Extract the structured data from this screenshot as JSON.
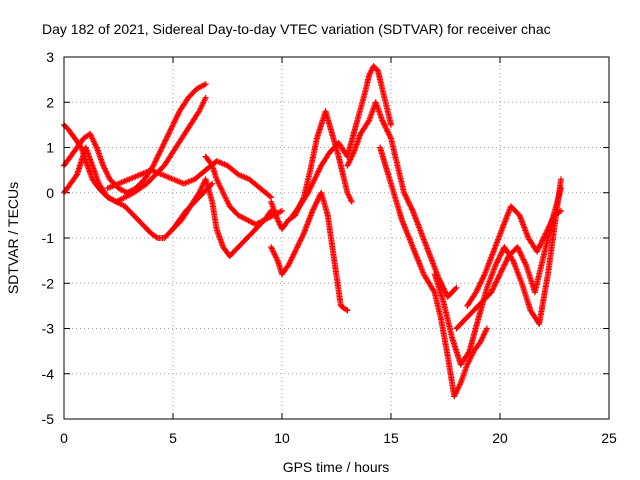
{
  "chart_data": {
    "type": "scatter",
    "title": "Day 182 of 2021, Sidereal Day-to-day VTEC variation (SDTVAR) for receiver chac",
    "xlabel": "GPS time / hours",
    "ylabel": "SDTVAR / TECUs",
    "xlim": [
      0,
      25
    ],
    "ylim": [
      -5,
      3
    ],
    "x_ticks": [
      "0",
      "5",
      "10",
      "15",
      "20",
      "25"
    ],
    "y_ticks": [
      "3",
      "2",
      "1",
      "0",
      "-1",
      "-2",
      "-3",
      "-4",
      "-5"
    ],
    "grid": true,
    "marker": "+",
    "marker_color": "#ff0000",
    "series": [
      {
        "x": [
          0.0,
          0.3,
          0.6,
          0.8,
          1.0,
          1.3,
          1.6,
          2.0,
          2.4,
          2.8,
          3.2,
          3.6,
          4.0,
          4.3,
          4.6,
          5.0,
          5.3,
          5.6,
          6.0,
          6.4,
          6.8
        ],
        "y": [
          0.0,
          0.2,
          0.4,
          0.7,
          1.0,
          0.6,
          0.2,
          -0.1,
          -0.2,
          -0.3,
          -0.5,
          -0.7,
          -0.9,
          -1.0,
          -1.0,
          -0.8,
          -0.6,
          -0.4,
          -0.2,
          0.0,
          0.2
        ]
      },
      {
        "x": [
          0.0,
          0.2,
          0.5,
          0.8,
          1.0,
          1.3,
          1.6,
          2.0,
          2.4,
          2.8,
          3.2,
          3.5,
          3.8,
          4.2,
          4.6,
          5.0,
          5.4,
          5.8,
          6.2,
          6.5
        ],
        "y": [
          1.5,
          1.4,
          1.2,
          1.0,
          0.7,
          0.3,
          0.1,
          -0.1,
          -0.2,
          -0.1,
          0.0,
          0.1,
          0.2,
          0.4,
          0.6,
          0.9,
          1.2,
          1.5,
          1.8,
          2.1
        ]
      },
      {
        "x": [
          0.0,
          0.3,
          0.6,
          0.9,
          1.2,
          1.5,
          1.8,
          2.1,
          2.5,
          2.9,
          3.3,
          3.7,
          4.1,
          4.5,
          4.9,
          5.3,
          5.7,
          6.1,
          6.5
        ],
        "y": [
          0.6,
          0.8,
          1.0,
          1.2,
          1.3,
          1.0,
          0.6,
          0.3,
          0.1,
          0.0,
          0.1,
          0.3,
          0.6,
          1.0,
          1.4,
          1.8,
          2.1,
          2.3,
          2.4
        ]
      },
      {
        "x": [
          2.0,
          2.5,
          3.0,
          3.5,
          4.0,
          4.5,
          5.0,
          5.5,
          6.0,
          6.5,
          7.0,
          7.5,
          8.0,
          8.5,
          9.0,
          9.5
        ],
        "y": [
          0.1,
          0.2,
          0.3,
          0.4,
          0.5,
          0.4,
          0.3,
          0.2,
          0.3,
          0.5,
          0.7,
          0.6,
          0.4,
          0.3,
          0.1,
          -0.1
        ]
      },
      {
        "x": [
          5.0,
          5.4,
          5.8,
          6.2,
          6.5,
          6.8,
          7.0,
          7.3,
          7.6,
          8.0,
          8.4,
          8.8,
          9.2,
          9.5
        ],
        "y": [
          -0.8,
          -0.6,
          -0.3,
          0.0,
          0.3,
          -0.2,
          -0.8,
          -1.2,
          -1.4,
          -1.2,
          -1.0,
          -0.8,
          -0.6,
          -0.4
        ]
      },
      {
        "x": [
          6.5,
          6.8,
          7.0,
          7.3,
          7.6,
          8.0,
          8.4,
          8.8,
          9.2,
          9.6,
          10.0
        ],
        "y": [
          0.8,
          0.6,
          0.3,
          0.0,
          -0.3,
          -0.5,
          -0.6,
          -0.7,
          -0.6,
          -0.5,
          -0.4
        ]
      },
      {
        "x": [
          9.5,
          9.8,
          10.0,
          10.3,
          10.6,
          11.0,
          11.3,
          11.6,
          12.0,
          12.3,
          12.6,
          12.8,
          13.0,
          13.2
        ],
        "y": [
          -0.2,
          -0.6,
          -0.8,
          -0.6,
          -0.5,
          -0.1,
          0.5,
          1.2,
          1.8,
          1.3,
          0.8,
          0.4,
          0.0,
          -0.2
        ]
      },
      {
        "x": [
          9.5,
          9.8,
          10.0,
          10.3,
          10.6,
          11.0,
          11.4,
          11.8,
          12.1,
          12.4,
          12.7,
          13.0
        ],
        "y": [
          -1.2,
          -1.5,
          -1.8,
          -1.6,
          -1.3,
          -0.9,
          -0.4,
          0.0,
          -0.5,
          -1.5,
          -2.5,
          -2.6
        ]
      },
      {
        "x": [
          10.5,
          10.8,
          11.2,
          11.5,
          11.8,
          12.2,
          12.6,
          13.0,
          13.4,
          13.8,
          14.0,
          14.2,
          14.4,
          14.6,
          14.8,
          15.0
        ],
        "y": [
          -0.5,
          -0.3,
          0.0,
          0.3,
          0.6,
          0.9,
          1.1,
          0.8,
          1.5,
          2.2,
          2.6,
          2.8,
          2.7,
          2.3,
          1.9,
          1.5
        ]
      },
      {
        "x": [
          13.0,
          13.3,
          13.6,
          14.0,
          14.3,
          14.6,
          15.0,
          15.3,
          15.6,
          16.0,
          16.4,
          16.8,
          17.2,
          17.6,
          18.0
        ],
        "y": [
          0.6,
          0.9,
          1.3,
          1.6,
          2.0,
          1.6,
          1.2,
          0.6,
          0.0,
          -0.4,
          -0.9,
          -1.4,
          -1.9,
          -2.3,
          -2.1
        ]
      },
      {
        "x": [
          14.5,
          15.0,
          15.5,
          16.0,
          16.5,
          17.0,
          17.3,
          17.6,
          17.9,
          18.2,
          18.5,
          18.8,
          19.1,
          19.4
        ],
        "y": [
          1.0,
          0.2,
          -0.6,
          -1.2,
          -1.8,
          -2.2,
          -2.8,
          -3.6,
          -4.5,
          -4.2,
          -3.8,
          -3.5,
          -3.3,
          -3.0
        ]
      },
      {
        "x": [
          17.0,
          17.4,
          17.8,
          18.2,
          18.6,
          19.0,
          19.4,
          19.8,
          20.2,
          20.6,
          21.0,
          21.4,
          21.8,
          22.2,
          22.6,
          22.8
        ],
        "y": [
          -1.8,
          -2.4,
          -3.2,
          -3.8,
          -3.5,
          -2.8,
          -2.1,
          -1.6,
          -1.2,
          -1.5,
          -2.0,
          -2.6,
          -2.9,
          -1.8,
          -0.4,
          0.3
        ]
      },
      {
        "x": [
          18.5,
          18.9,
          19.3,
          19.7,
          20.1,
          20.5,
          20.9,
          21.3,
          21.7,
          22.1,
          22.5,
          22.8
        ],
        "y": [
          -2.5,
          -2.2,
          -1.8,
          -1.3,
          -0.8,
          -0.3,
          -0.5,
          -1.0,
          -1.3,
          -0.9,
          -0.5,
          -0.4
        ]
      },
      {
        "x": [
          18.0,
          18.4,
          18.8,
          19.2,
          19.6,
          20.0,
          20.4,
          20.8,
          21.2,
          21.6,
          22.0,
          22.4,
          22.8
        ],
        "y": [
          -3.0,
          -2.8,
          -2.6,
          -2.4,
          -2.2,
          -1.8,
          -1.4,
          -1.2,
          -1.6,
          -2.2,
          -1.4,
          -0.6,
          0.1
        ]
      }
    ]
  }
}
